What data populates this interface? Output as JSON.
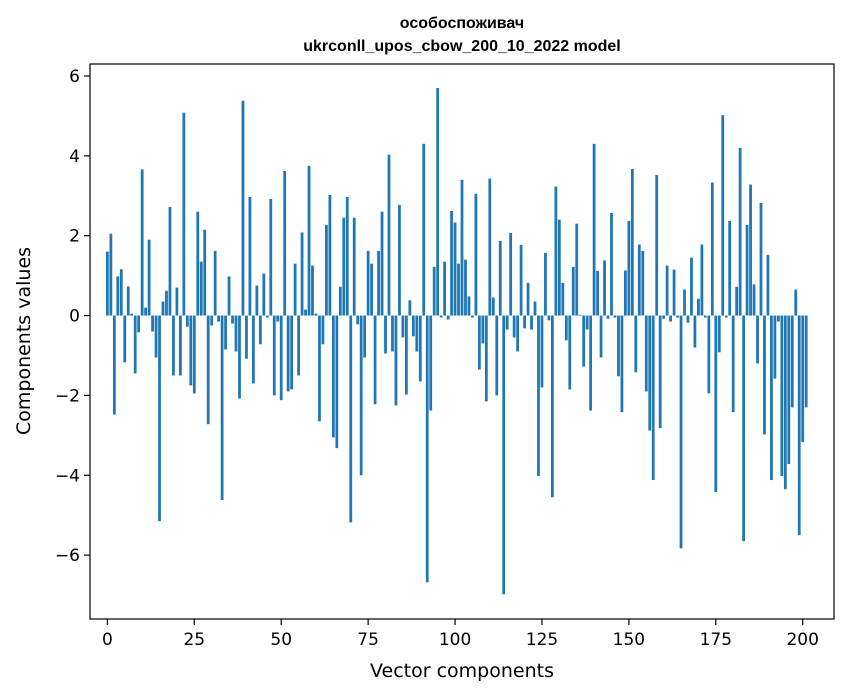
{
  "chart_data": {
    "type": "bar",
    "title_line1": "особоспоживач",
    "title_line2": "ukrconll_upos_cbow_200_10_2022 model",
    "xlabel": "Vector components",
    "ylabel": "Components values",
    "xlim": [
      -5,
      209
    ],
    "ylim": [
      -7.6,
      6.3
    ],
    "xticks": [
      0,
      25,
      50,
      75,
      100,
      125,
      150,
      175,
      200
    ],
    "yticks": [
      -6,
      -4,
      -2,
      0,
      2,
      4,
      6
    ],
    "xtick_labels": [
      "0",
      "25",
      "50",
      "75",
      "100",
      "125",
      "150",
      "175",
      "200"
    ],
    "ytick_labels": [
      "−6",
      "−4",
      "−2",
      "0",
      "2",
      "4",
      "6"
    ],
    "bar_color": "#1f77b4",
    "grid": false,
    "values": [
      1.6,
      2.05,
      -2.48,
      0.98,
      1.16,
      -1.17,
      0.73,
      0.05,
      -1.45,
      -0.42,
      3.66,
      0.2,
      1.9,
      -0.4,
      -1.05,
      -5.15,
      0.35,
      0.62,
      2.72,
      -1.5,
      0.7,
      -1.5,
      5.08,
      -0.28,
      -1.75,
      -1.95,
      2.6,
      1.35,
      2.15,
      -2.72,
      -0.25,
      1.62,
      -0.15,
      -4.62,
      -0.85,
      0.98,
      -0.2,
      -0.9,
      -2.08,
      5.38,
      -1.08,
      2.97,
      -1.7,
      0.75,
      -0.72,
      1.05,
      -0.05,
      2.92,
      -2.0,
      -0.15,
      -2.12,
      3.62,
      -1.9,
      -1.85,
      1.3,
      -1.5,
      2.08,
      0.15,
      3.75,
      1.25,
      0.05,
      -2.65,
      -0.72,
      2.27,
      3.02,
      -3.05,
      -3.32,
      0.72,
      2.45,
      2.97,
      -5.18,
      2.45,
      -0.22,
      -4.0,
      -1.05,
      1.62,
      1.3,
      -2.22,
      1.62,
      2.6,
      -0.95,
      4.03,
      -0.9,
      -2.25,
      2.77,
      -0.55,
      -1.98,
      0.38,
      -0.52,
      -0.9,
      -1.65,
      4.3,
      -6.68,
      -2.38,
      1.22,
      5.7,
      -0.05,
      1.35,
      -0.1,
      2.62,
      2.33,
      1.3,
      3.4,
      1.4,
      0.48,
      -0.05,
      3.05,
      -1.35,
      -0.7,
      -2.15,
      3.43,
      0.45,
      -2.0,
      1.87,
      -6.98,
      -0.35,
      2.07,
      -0.55,
      -0.9,
      1.77,
      -0.32,
      0.82,
      -0.35,
      0.35,
      -4.02,
      -1.8,
      1.57,
      -0.12,
      -4.55,
      3.23,
      2.4,
      0.82,
      -0.62,
      -1.85,
      1.22,
      2.3,
      0.02,
      -1.28,
      -0.35,
      -2.38,
      4.3,
      1.12,
      -1.05,
      1.38,
      -0.08,
      2.57,
      -0.05,
      -1.52,
      -2.42,
      1.13,
      2.37,
      3.67,
      -1.42,
      1.78,
      1.62,
      -1.9,
      -2.88,
      -4.12,
      3.52,
      -2.82,
      -0.08,
      1.25,
      -0.15,
      1.15,
      -0.05,
      -5.83,
      0.65,
      -0.18,
      1.45,
      -0.8,
      0.42,
      1.78,
      -0.05,
      -1.95,
      3.33,
      -4.42,
      -0.92,
      5.02,
      -0.05,
      2.37,
      -2.42,
      0.72,
      4.2,
      -5.65,
      2.27,
      3.28,
      0.78,
      -1.2,
      2.82,
      -2.98,
      1.52,
      -4.12,
      -1.58,
      -0.15,
      -4.02,
      -4.35,
      -3.72,
      -2.3,
      0.65,
      -5.5,
      -3.17,
      -2.3
    ]
  }
}
